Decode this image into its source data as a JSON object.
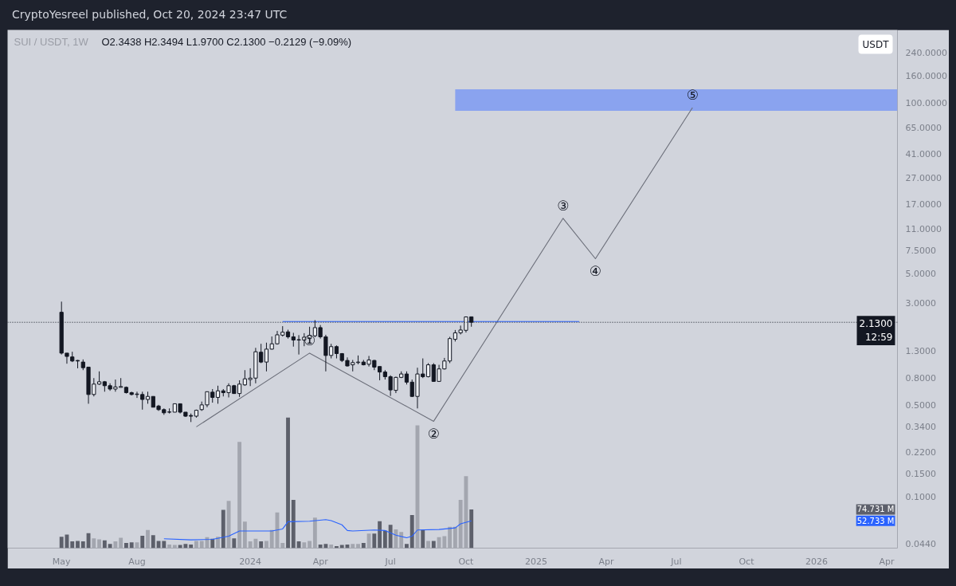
{
  "chart_data": {
    "type": "candlestick",
    "title": "SUI / USDT, 1W",
    "subtitle": "O2.3438 H2.3494 L1.9700 C2.1300 −0.2129 (−9.09%)",
    "annotations": [
      "CryptoYesreel published, Oct 20, 2024 23:47 UTC",
      "USDT",
      {
        "text": "①",
        "x": "2024-03-18",
        "y": 1.24
      },
      {
        "text": "②",
        "x": "2024-08-26",
        "y": 0.375
      },
      {
        "text": "③",
        "x": "2025-02-10",
        "y": 13.2
      },
      {
        "text": "④",
        "x": "2025-03-24",
        "y": 6.5
      },
      {
        "text": "⑤",
        "x": "2025-07-28",
        "y": 92
      }
    ],
    "x": [
      "2023-05-01",
      "2023-05-08",
      "2023-05-15",
      "2023-05-22",
      "2023-05-29",
      "2023-06-05",
      "2023-06-12",
      "2023-06-19",
      "2023-06-26",
      "2023-07-03",
      "2023-07-10",
      "2023-07-17",
      "2023-07-24",
      "2023-07-31",
      "2023-08-07",
      "2023-08-14",
      "2023-08-21",
      "2023-08-28",
      "2023-09-04",
      "2023-09-11",
      "2023-09-18",
      "2023-09-25",
      "2023-10-02",
      "2023-10-09",
      "2023-10-16",
      "2023-10-23",
      "2023-10-30",
      "2023-11-06",
      "2023-11-13",
      "2023-11-20",
      "2023-11-27",
      "2023-12-04",
      "2023-12-11",
      "2023-12-18",
      "2023-12-25",
      "2024-01-01",
      "2024-01-08",
      "2024-01-15",
      "2024-01-22",
      "2024-01-29",
      "2024-02-05",
      "2024-02-12",
      "2024-02-19",
      "2024-02-26",
      "2024-03-04",
      "2024-03-11",
      "2024-03-18",
      "2024-03-25",
      "2024-04-01",
      "2024-04-08",
      "2024-04-15",
      "2024-04-22",
      "2024-04-29",
      "2024-05-06",
      "2024-05-13",
      "2024-05-20",
      "2024-05-27",
      "2024-06-03",
      "2024-06-10",
      "2024-06-17",
      "2024-06-24",
      "2024-07-01",
      "2024-07-08",
      "2024-07-15",
      "2024-07-22",
      "2024-07-29",
      "2024-08-05",
      "2024-08-12",
      "2024-08-19",
      "2024-08-26",
      "2024-09-02",
      "2024-09-09",
      "2024-09-16",
      "2024-09-23",
      "2024-09-30",
      "2024-10-07",
      "2024-10-14"
    ],
    "ohlc": [
      [
        2.54,
        3.06,
        1.21,
        1.24
      ],
      [
        1.24,
        1.24,
        1.03,
        1.17
      ],
      [
        1.16,
        1.27,
        1.06,
        1.08
      ],
      [
        1.09,
        1.1,
        0.95,
        1.08
      ],
      [
        1.06,
        1.11,
        0.92,
        0.96
      ],
      [
        0.97,
        0.97,
        0.51,
        0.6
      ],
      [
        0.6,
        0.8,
        0.58,
        0.72
      ],
      [
        0.72,
        0.9,
        0.71,
        0.75
      ],
      [
        0.75,
        0.76,
        0.63,
        0.7
      ],
      [
        0.7,
        0.73,
        0.64,
        0.66
      ],
      [
        0.66,
        0.78,
        0.63,
        0.685
      ],
      [
        0.68,
        0.8,
        0.68,
        0.69
      ],
      [
        0.68,
        0.69,
        0.61,
        0.62
      ],
      [
        0.62,
        0.63,
        0.59,
        0.6
      ],
      [
        0.6,
        0.63,
        0.565,
        0.605
      ],
      [
        0.6,
        0.63,
        0.46,
        0.55
      ],
      [
        0.55,
        0.63,
        0.51,
        0.58
      ],
      [
        0.58,
        0.58,
        0.48,
        0.48
      ],
      [
        0.49,
        0.5,
        0.45,
        0.46
      ],
      [
        0.46,
        0.47,
        0.42,
        0.435
      ],
      [
        0.44,
        0.47,
        0.43,
        0.442
      ],
      [
        0.44,
        0.51,
        0.44,
        0.51
      ],
      [
        0.51,
        0.51,
        0.43,
        0.44
      ],
      [
        0.44,
        0.44,
        0.405,
        0.41
      ],
      [
        0.415,
        0.43,
        0.37,
        0.41
      ],
      [
        0.41,
        0.46,
        0.4,
        0.455
      ],
      [
        0.46,
        0.53,
        0.45,
        0.5
      ],
      [
        0.5,
        0.63,
        0.48,
        0.63
      ],
      [
        0.625,
        0.66,
        0.52,
        0.57
      ],
      [
        0.57,
        0.7,
        0.51,
        0.64
      ],
      [
        0.64,
        0.66,
        0.58,
        0.62
      ],
      [
        0.62,
        0.73,
        0.57,
        0.7
      ],
      [
        0.7,
        0.71,
        0.61,
        0.61
      ],
      [
        0.61,
        0.77,
        0.575,
        0.72
      ],
      [
        0.71,
        0.92,
        0.7,
        0.79
      ],
      [
        0.78,
        0.95,
        0.695,
        0.8
      ],
      [
        0.8,
        1.36,
        0.73,
        1.27
      ],
      [
        1.26,
        1.46,
        1.04,
        1.06
      ],
      [
        1.06,
        1.49,
        0.9,
        1.33
      ],
      [
        1.33,
        1.66,
        1.32,
        1.46
      ],
      [
        1.46,
        1.83,
        1.44,
        1.71
      ],
      [
        1.7,
        1.99,
        1.66,
        1.79
      ],
      [
        1.8,
        1.87,
        1.6,
        1.65
      ],
      [
        1.65,
        1.77,
        1.39,
        1.56
      ],
      [
        1.57,
        1.7,
        1.21,
        1.56
      ],
      [
        1.56,
        1.76,
        1.4,
        1.64
      ],
      [
        1.6,
        1.97,
        1.49,
        1.69
      ],
      [
        1.68,
        2.21,
        1.64,
        1.94
      ],
      [
        1.94,
        2.03,
        1.6,
        1.65
      ],
      [
        1.65,
        1.71,
        0.9,
        1.19
      ],
      [
        1.19,
        1.46,
        1.13,
        1.39
      ],
      [
        1.39,
        1.42,
        1.13,
        1.23
      ],
      [
        1.23,
        1.24,
        1.06,
        1.09
      ],
      [
        1.09,
        1.15,
        0.98,
        0.99
      ],
      [
        1.01,
        1.1,
        0.9,
        1.05
      ],
      [
        1.05,
        1.19,
        1.02,
        1.06
      ],
      [
        1.06,
        1.1,
        1.0,
        1.01
      ],
      [
        1.02,
        1.18,
        0.98,
        1.1
      ],
      [
        1.09,
        1.1,
        0.92,
        0.97
      ],
      [
        0.98,
        0.98,
        0.77,
        0.89
      ],
      [
        0.89,
        0.92,
        0.78,
        0.82
      ],
      [
        0.82,
        0.84,
        0.585,
        0.65
      ],
      [
        0.645,
        0.82,
        0.615,
        0.81
      ],
      [
        0.81,
        0.9,
        0.8,
        0.86
      ],
      [
        0.86,
        0.9,
        0.715,
        0.745
      ],
      [
        0.745,
        0.78,
        0.575,
        0.58
      ],
      [
        0.58,
        0.96,
        0.47,
        0.86
      ],
      [
        0.86,
        1.13,
        0.8,
        0.82
      ],
      [
        0.82,
        1.04,
        0.81,
        1.01
      ],
      [
        1.01,
        1.04,
        0.75,
        0.755
      ],
      [
        0.755,
        1.01,
        0.75,
        0.94
      ],
      [
        0.94,
        1.14,
        0.93,
        1.08
      ],
      [
        1.08,
        1.65,
        1.04,
        1.6
      ],
      [
        1.58,
        1.86,
        1.52,
        1.77
      ],
      [
        1.77,
        2.01,
        1.72,
        1.86
      ],
      [
        1.85,
        2.36,
        1.78,
        2.34
      ],
      [
        2.3438,
        2.3494,
        1.97,
        2.13
      ]
    ],
    "color": "#131722",
    "colors": [
      "#131722",
      "#131722",
      "#131722",
      "#131722",
      "#131722",
      "#131722",
      "#eceef2",
      "#eceef2",
      "#131722",
      "#131722",
      "#eceef2",
      "#eceef2",
      "#131722",
      "#131722",
      "#eceef2",
      "#131722",
      "#eceef2",
      "#131722",
      "#131722",
      "#131722",
      "#eceef2",
      "#eceef2",
      "#131722",
      "#131722",
      "#131722",
      "#eceef2",
      "#eceef2",
      "#eceef2",
      "#131722",
      "#eceef2",
      "#131722",
      "#eceef2",
      "#131722",
      "#eceef2",
      "#eceef2",
      "#eceef2",
      "#eceef2",
      "#131722",
      "#eceef2",
      "#eceef2",
      "#eceef2",
      "#eceef2",
      "#131722",
      "#131722",
      "#131722",
      "#eceef2",
      "#eceef2",
      "#eceef2",
      "#131722",
      "#131722",
      "#eceef2",
      "#131722",
      "#131722",
      "#131722",
      "#eceef2",
      "#eceef2",
      "#131722",
      "#eceef2",
      "#131722",
      "#131722",
      "#131722",
      "#131722",
      "#eceef2",
      "#eceef2",
      "#131722",
      "#131722",
      "#eceef2",
      "#131722",
      "#eceef2",
      "#131722",
      "#eceef2",
      "#eceef2",
      "#eceef2",
      "#eceef2",
      "#eceef2",
      "#eceef2",
      "#131722"
    ],
    "series": [
      {
        "type": "area",
        "x": [
          "2024-09-23",
          "2026-04-20"
        ],
        "values": [
          null,
          null
        ],
        "lower": [
          87,
          87
        ],
        "upper": [
          127,
          127
        ],
        "color": "#8aa3ef"
      },
      {
        "type": "bar",
        "axis": "y2",
        "values": [
          22,
          26,
          13,
          14,
          13,
          29,
          19,
          17,
          15,
          8,
          13,
          20,
          10,
          11,
          11,
          24,
          35,
          25,
          14,
          14,
          7,
          6,
          6,
          8,
          7,
          14,
          14,
          21,
          18,
          22,
          74,
          91,
          19,
          205,
          51,
          13,
          18,
          13,
          14,
          35,
          69,
          10,
          252,
          93,
          13,
          11,
          14,
          59,
          7,
          8,
          7,
          4,
          6,
          7,
          8,
          8,
          10,
          28,
          28,
          52,
          34,
          45,
          36,
          31,
          8,
          64,
          237,
          35,
          14,
          14,
          21,
          23,
          41,
          41,
          93,
          139,
          74.731
        ],
        "colors": [
          "#5d606b",
          "#5d606b",
          "#5d606b",
          "#5d606b",
          "#5d606b",
          "#5d606b",
          "#a3a6af",
          "#a3a6af",
          "#5d606b",
          "#5d606b",
          "#a3a6af",
          "#a3a6af",
          "#5d606b",
          "#5d606b",
          "#a3a6af",
          "#5d606b",
          "#a3a6af",
          "#5d606b",
          "#5d606b",
          "#5d606b",
          "#a3a6af",
          "#a3a6af",
          "#5d606b",
          "#5d606b",
          "#5d606b",
          "#a3a6af",
          "#a3a6af",
          "#a3a6af",
          "#5d606b",
          "#a3a6af",
          "#5d606b",
          "#a3a6af",
          "#5d606b",
          "#a3a6af",
          "#a3a6af",
          "#a3a6af",
          "#a3a6af",
          "#5d606b",
          "#a3a6af",
          "#a3a6af",
          "#a3a6af",
          "#a3a6af",
          "#5d606b",
          "#5d606b",
          "#5d606b",
          "#a3a6af",
          "#a3a6af",
          "#a3a6af",
          "#5d606b",
          "#5d606b",
          "#a3a6af",
          "#5d606b",
          "#5d606b",
          "#5d606b",
          "#a3a6af",
          "#a3a6af",
          "#5d606b",
          "#a3a6af",
          "#5d606b",
          "#5d606b",
          "#5d606b",
          "#5d606b",
          "#a3a6af",
          "#a3a6af",
          "#5d606b",
          "#5d606b",
          "#a3a6af",
          "#5d606b",
          "#a3a6af",
          "#5d606b",
          "#a3a6af",
          "#a3a6af",
          "#a3a6af",
          "#a3a6af",
          "#a3a6af",
          "#a3a6af",
          "#5d606b"
        ]
      },
      {
        "type": "line",
        "axis": "y2",
        "x": [
          "2023-09-11",
          "2023-10-16",
          "2023-11-13",
          "2023-12-04",
          "2023-12-18",
          "2024-01-01",
          "2024-01-29",
          "2024-02-12",
          "2024-02-19",
          "2024-03-18",
          "2024-04-08",
          "2024-04-15",
          "2024-04-29",
          "2024-05-06",
          "2024-05-13",
          "2024-06-10",
          "2024-06-24",
          "2024-07-08",
          "2024-07-22",
          "2024-07-29",
          "2024-08-05",
          "2024-09-02",
          "2024-09-23",
          "2024-09-30",
          "2024-10-14"
        ],
        "values": [
          18,
          16,
          17,
          23,
          33,
          33,
          33,
          37,
          51,
          52,
          55,
          53,
          45,
          34,
          33,
          35,
          34,
          25,
          20,
          23,
          35,
          36,
          39,
          47,
          52.733
        ],
        "color": "#2962ff"
      },
      {
        "type": "line",
        "x": [
          "2023-10-23",
          "2024-03-18",
          "2024-08-26",
          "2025-02-10",
          "2025-03-24",
          "2025-07-28"
        ],
        "values": [
          0.34,
          1.24,
          0.375,
          13.2,
          6.5,
          92
        ],
        "color": "#6b6e79"
      },
      {
        "type": "line",
        "x": [
          "2024-02-12",
          "2025-03-03"
        ],
        "values": [
          2.16,
          2.16
        ],
        "color": "#2962ff"
      }
    ],
    "xlim": [
      "2023-02-20",
      "2026-04-20"
    ],
    "xticks": [
      {
        "value": "2023-05-01",
        "label": "May"
      },
      {
        "value": "2023-08-07",
        "label": "Aug"
      },
      {
        "value": "2024-01-01",
        "label": "2024"
      },
      {
        "value": "2024-04-01",
        "label": "Apr"
      },
      {
        "value": "2024-07-01",
        "label": "Jul"
      },
      {
        "value": "2024-10-07",
        "label": "Oct"
      },
      {
        "value": "2025-01-06",
        "label": "2025"
      },
      {
        "value": "2025-04-07",
        "label": "Apr"
      },
      {
        "value": "2025-07-07",
        "label": "Jul"
      },
      {
        "value": "2025-10-06",
        "label": "Oct"
      },
      {
        "value": "2026-01-05",
        "label": "2026"
      },
      {
        "value": "2026-04-06",
        "label": "Apr"
      }
    ],
    "log": "y",
    "ylim": [
      0.0405,
      360
    ],
    "yticks": [
      {
        "value": 0.044,
        "label": "0.0440"
      },
      {
        "value": 0.1,
        "label": "0.1000"
      },
      {
        "value": 0.15,
        "label": "0.1500"
      },
      {
        "value": 0.22,
        "label": "0.2200"
      },
      {
        "value": 0.34,
        "label": "0.3400"
      },
      {
        "value": 0.5,
        "label": "0.5000"
      },
      {
        "value": 0.8,
        "label": "0.8000"
      },
      {
        "value": 1.3,
        "label": "1.3000"
      },
      {
        "value": 3,
        "label": "3.0000"
      },
      {
        "value": 5,
        "label": "5.0000"
      },
      {
        "value": 7.5,
        "label": "7.5000"
      },
      {
        "value": 11,
        "label": "11.0000"
      },
      {
        "value": 17,
        "label": "17.0000"
      },
      {
        "value": 27,
        "label": "27.0000"
      },
      {
        "value": 41,
        "label": "41.0000"
      },
      {
        "value": 65,
        "label": "65.0000"
      },
      {
        "value": 100,
        "label": "100.0000"
      },
      {
        "value": 160,
        "label": "160.0000"
      },
      {
        "value": 240,
        "label": "240.0000"
      }
    ],
    "y2lim": [
      0,
      1000
    ],
    "y2ticks": [
      {
        "value": 74.731,
        "label": "74.731 M"
      },
      {
        "value": 52.733,
        "label": "52.733 M"
      }
    ],
    "ref_lines": [
      {
        "axis": "y",
        "value": 2.13,
        "label": "2.1300\n12:59",
        "color": "#131722",
        "line_style": "dotted"
      }
    ]
  }
}
